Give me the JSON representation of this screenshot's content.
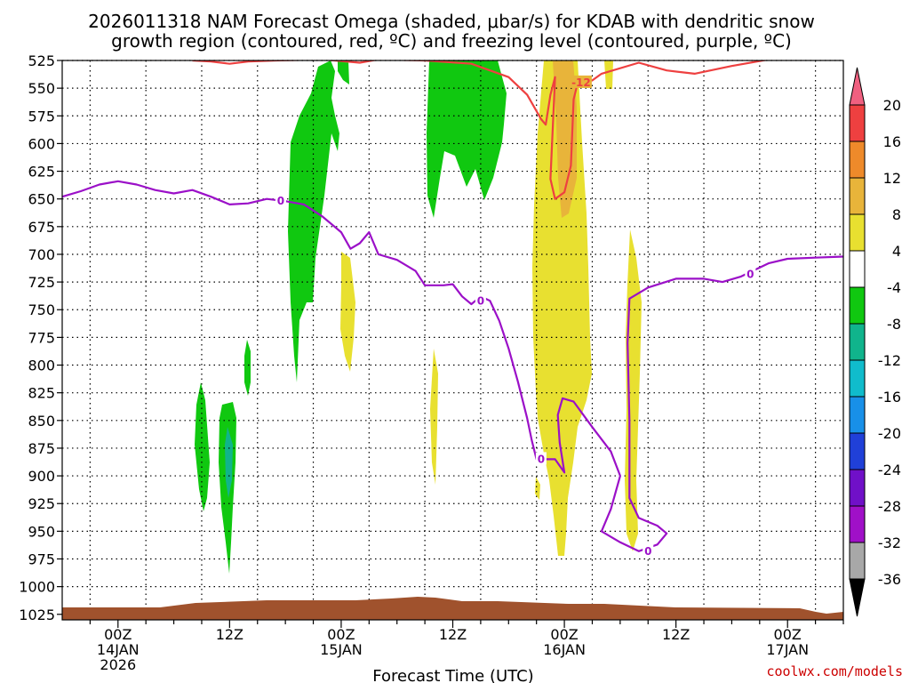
{
  "chart_data": {
    "type": "area",
    "title_line1": "2026011318 NAM Forecast Omega (shaded, μbar/s) for KDAB with dendritic snow",
    "title_line2": "growth region (contoured, red, ºC) and freezing level (contoured, purple, ºC)",
    "xlabel": "Forecast Time (UTC)",
    "credit": "coolwx.com/models",
    "xlim_hours": [
      -6,
      78
    ],
    "ylim_hpa": [
      1030,
      525
    ],
    "y_ticks": [
      525,
      550,
      575,
      600,
      625,
      650,
      675,
      700,
      725,
      750,
      775,
      800,
      825,
      850,
      875,
      900,
      925,
      950,
      975,
      1000,
      1025
    ],
    "x_ticks": [
      {
        "hour": 0,
        "label": "00Z",
        "sub1": "14JAN",
        "sub2": "2026"
      },
      {
        "hour": 12,
        "label": "12Z",
        "sub1": "",
        "sub2": ""
      },
      {
        "hour": 24,
        "label": "00Z",
        "sub1": "15JAN",
        "sub2": ""
      },
      {
        "hour": 36,
        "label": "12Z",
        "sub1": "",
        "sub2": ""
      },
      {
        "hour": 48,
        "label": "00Z",
        "sub1": "16JAN",
        "sub2": ""
      },
      {
        "hour": 60,
        "label": "12Z",
        "sub1": "",
        "sub2": ""
      },
      {
        "hour": 72,
        "label": "00Z",
        "sub1": "17JAN",
        "sub2": ""
      }
    ],
    "colorbar": {
      "labels": [
        "20",
        "16",
        "12",
        "8",
        "4",
        "-4",
        "-8",
        "-12",
        "-16",
        "-20",
        "-24",
        "-28",
        "-32",
        "-36"
      ],
      "colors": [
        "#f06080",
        "#ee4040",
        "#ee8a2a",
        "#e8b43a",
        "#e8e030",
        "#ffffff",
        "#10c810",
        "#10b48c",
        "#10bccc",
        "#1890e8",
        "#2040d8",
        "#7010c8",
        "#a010c8",
        "#a8a8a8",
        "#000000"
      ]
    },
    "series": [
      {
        "name": "freezing level 0°C",
        "color": "#9b10c8",
        "contour_label": "0",
        "points": [
          [
            -6,
            648
          ],
          [
            -4,
            643
          ],
          [
            -2,
            637
          ],
          [
            0,
            634
          ],
          [
            2,
            637
          ],
          [
            4,
            642
          ],
          [
            6,
            645
          ],
          [
            8,
            642
          ],
          [
            10,
            648
          ],
          [
            12,
            655
          ],
          [
            14,
            654
          ],
          [
            16,
            650
          ],
          [
            18,
            652
          ],
          [
            20,
            655
          ],
          [
            22,
            666
          ],
          [
            24,
            680
          ],
          [
            25,
            695
          ],
          [
            26,
            690
          ],
          [
            27,
            680
          ],
          [
            28,
            700
          ],
          [
            30,
            705
          ],
          [
            32,
            715
          ],
          [
            33,
            728
          ],
          [
            35,
            728
          ],
          [
            36,
            727
          ],
          [
            37,
            738
          ],
          [
            38,
            745
          ],
          [
            39,
            738
          ],
          [
            40,
            742
          ],
          [
            41,
            760
          ],
          [
            42,
            785
          ],
          [
            43,
            815
          ],
          [
            44,
            848
          ],
          [
            44.5,
            868
          ],
          [
            45,
            885
          ],
          [
            47,
            885
          ],
          [
            48,
            897
          ],
          [
            47.5,
            870
          ],
          [
            47.3,
            845
          ],
          [
            47.8,
            830
          ],
          [
            49,
            833
          ],
          [
            51,
            856
          ],
          [
            53,
            878
          ],
          [
            54,
            900
          ],
          [
            53,
            930
          ],
          [
            52,
            950
          ],
          [
            54,
            960
          ],
          [
            56,
            968
          ],
          [
            58,
            962
          ],
          [
            59,
            952
          ],
          [
            58,
            945
          ],
          [
            56,
            938
          ],
          [
            55,
            920
          ],
          [
            55,
            890
          ],
          [
            55,
            850
          ],
          [
            54.8,
            780
          ],
          [
            55,
            740
          ],
          [
            57,
            730
          ],
          [
            60,
            722
          ],
          [
            63,
            722
          ],
          [
            65,
            725
          ],
          [
            67,
            720
          ],
          [
            70,
            708
          ],
          [
            72,
            704
          ],
          [
            75,
            703
          ],
          [
            78,
            702
          ]
        ]
      },
      {
        "name": "dendritic growth region -12°C",
        "color": "#ee4040",
        "contour_label": "-12",
        "points": [
          [
            8,
            525
          ],
          [
            10,
            526
          ],
          [
            12,
            528
          ],
          [
            14,
            526
          ],
          [
            17,
            525
          ],
          [
            22,
            524
          ],
          [
            26,
            527
          ],
          [
            28,
            524
          ],
          [
            33,
            525
          ],
          [
            38,
            528
          ],
          [
            42,
            540
          ],
          [
            44,
            556
          ],
          [
            45.5,
            578
          ],
          [
            46,
            583
          ],
          [
            46.5,
            556
          ],
          [
            47,
            540
          ],
          [
            46.5,
            632
          ],
          [
            47,
            650
          ],
          [
            48,
            644
          ],
          [
            48.7,
            620
          ],
          [
            49,
            560
          ],
          [
            49.5,
            543
          ],
          [
            50,
            542
          ],
          [
            49.5,
            540
          ],
          [
            51,
            543
          ],
          [
            52,
            537
          ],
          [
            56,
            527
          ],
          [
            59,
            534
          ],
          [
            62,
            537
          ],
          [
            66,
            530
          ],
          [
            70,
            524
          ],
          [
            78,
            524
          ]
        ]
      }
    ],
    "filled_regions": [
      {
        "name": "omega -4 to -8 cluster 12Z 14JAN",
        "color": "#10c810",
        "value_range": [
          -8,
          -4
        ]
      },
      {
        "name": "omega -8 to -12 core",
        "color": "#10b48c",
        "value_range": [
          -12,
          -8
        ]
      },
      {
        "name": "omega 4 to 8 column 00Z 16JAN",
        "color": "#e8e030",
        "value_range": [
          4,
          8
        ]
      },
      {
        "name": "omega 8 to 12 core",
        "color": "#e8b43a",
        "value_range": [
          8,
          12
        ]
      },
      {
        "name": "terrain / below ground",
        "color": "#a0522d",
        "value_range": []
      }
    ]
  }
}
